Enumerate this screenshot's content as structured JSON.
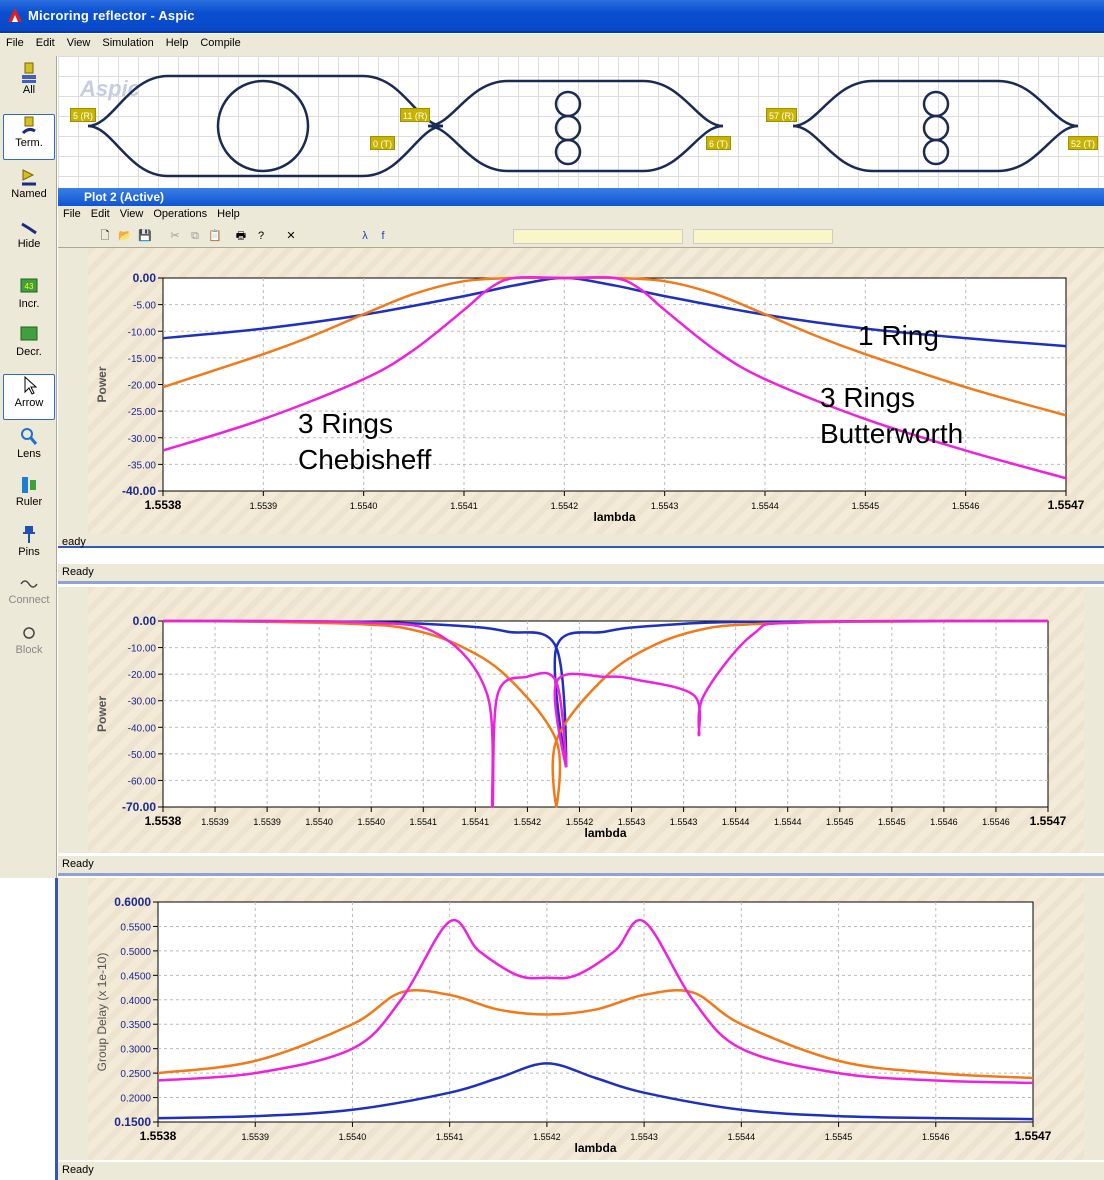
{
  "window": {
    "title": "Microring reflector - Aspic"
  },
  "menu": [
    "File",
    "Edit",
    "View",
    "Simulation",
    "Help",
    "Compile"
  ],
  "tools": [
    {
      "label": "All",
      "icon": "select-all-icon"
    },
    {
      "label": "Term.",
      "icon": "terminal-icon",
      "selected": true
    },
    {
      "label": "Named",
      "icon": "named-icon"
    },
    {
      "label": "Hide",
      "icon": "hide-icon"
    },
    {
      "label": "Incr.",
      "icon": "increment-icon",
      "badge": "43"
    },
    {
      "label": "Decr.",
      "icon": "decrement-icon"
    },
    {
      "label": "Arrow",
      "icon": "arrow-cursor-icon",
      "selected": true
    },
    {
      "label": "Lens",
      "icon": "lens-icon"
    },
    {
      "label": "Ruler",
      "icon": "ruler-icon"
    },
    {
      "label": "Pins",
      "icon": "pin-icon"
    },
    {
      "label": "Connect",
      "icon": "connect-icon",
      "disabled": true
    },
    {
      "label": "Block",
      "icon": "block-icon",
      "disabled": true
    }
  ],
  "schematic": {
    "watermark": "Aspic",
    "ports": [
      "5 (R)",
      "0 (T)",
      "11 (R)",
      "6 (T)",
      "57 (R)",
      "52 (T)"
    ]
  },
  "plot_window": {
    "title": "Plot 2 (Active)",
    "menu": [
      "File",
      "Edit",
      "View",
      "Operations",
      "Help"
    ],
    "status": "Ready",
    "status_truncated": "eady"
  },
  "status_texts": [
    "Ready",
    "Ready",
    "Ready"
  ],
  "annotations": {
    "one_ring": "1 Ring",
    "butterworth_1": "3 Rings",
    "butterworth_2": "Butterworth",
    "chebisheff_1": "3 Rings",
    "chebisheff_2": "Chebisheff"
  },
  "colors": {
    "one_ring": "#1f2fbf",
    "butterworth": "#f07a1a",
    "chebisheff": "#ee22dd",
    "title_bar": "#0a4fd0"
  },
  "chart_data": [
    {
      "type": "line",
      "xlabel": "lambda",
      "ylabel": "Power",
      "xlim": [
        1.5538,
        1.5547
      ],
      "ylim": [
        -40,
        0
      ],
      "x_ticks": [
        "1.5538",
        "1.5539",
        "1.5540",
        "1.5541",
        "1.5542",
        "1.5543",
        "1.5544",
        "1.5545",
        "1.5546",
        "1.5547"
      ],
      "y_ticks": [
        "0.00",
        "-5.00",
        "-10.00",
        "-15.00",
        "-20.00",
        "-25.00",
        "-30.00",
        "-35.00",
        "-40.00"
      ],
      "grid": true,
      "series": [
        {
          "key": "one_ring",
          "x": [
            1.5538,
            1.5539,
            1.554,
            1.5541,
            1.55415,
            1.5542,
            1.55425,
            1.5543,
            1.5544,
            1.5545,
            1.5546,
            1.5547
          ],
          "values": [
            -11.3,
            -9.5,
            -6.9,
            -3.4,
            -1.4,
            0,
            -1.4,
            -3.4,
            -6.9,
            -9.5,
            -11.3,
            -12.8
          ]
        },
        {
          "key": "butterworth",
          "x": [
            1.5538,
            1.5539,
            1.55395,
            1.554,
            1.55405,
            1.5541,
            1.55415,
            1.5542,
            1.55425,
            1.5543,
            1.55435,
            1.5544,
            1.55445,
            1.5545,
            1.5546,
            1.5547
          ],
          "values": [
            -20.5,
            -14.3,
            -10.8,
            -6.8,
            -3,
            -0.6,
            0,
            0,
            0,
            -0.6,
            -3,
            -6.8,
            -10.8,
            -14.3,
            -20.5,
            -25.8
          ]
        },
        {
          "key": "chebisheff",
          "x": [
            1.5538,
            1.5539,
            1.554,
            1.55405,
            1.5541,
            1.554125,
            1.55415,
            1.5542,
            1.55425,
            1.554275,
            1.5543,
            1.55435,
            1.5544,
            1.5545,
            1.5546,
            1.5547
          ],
          "values": [
            -32.4,
            -26.5,
            -19,
            -13.5,
            -6,
            -2,
            0,
            0,
            0,
            -2,
            -6,
            -13.5,
            -19,
            -26.5,
            -32.4,
            -37.6
          ]
        }
      ]
    },
    {
      "type": "line",
      "xlabel": "lambda",
      "ylabel": "Power",
      "xlim": [
        1.5538,
        1.5547
      ],
      "ylim": [
        -70,
        0
      ],
      "x_ticks": [
        "1.5538",
        "1.5539",
        "1.5539",
        "1.5540",
        "1.5540",
        "1.5541",
        "1.5541",
        "1.5542",
        "1.5542",
        "1.5543",
        "1.5543",
        "1.5544",
        "1.5544",
        "1.5545",
        "1.5545",
        "1.5546",
        "1.5546",
        "1.5547"
      ],
      "y_ticks": [
        "0.00",
        "-10.00",
        "-20.00",
        "-30.00",
        "-40.00",
        "-50.00",
        "-60.00",
        "-70.00"
      ],
      "grid": true,
      "series": [
        {
          "key": "one_ring",
          "x": [
            1.5538,
            1.554,
            1.5541,
            1.55415,
            1.5542,
            1.55421,
            1.5542,
            1.55425,
            1.5543,
            1.5544,
            1.5547
          ],
          "values": [
            0,
            -0.3,
            -1.8,
            -4,
            -10,
            -55,
            -10,
            -4,
            -1.8,
            -0.3,
            0
          ]
        },
        {
          "key": "butterworth",
          "x": [
            1.5538,
            1.5539,
            1.554,
            1.55405,
            1.5541,
            1.55415,
            1.5542,
            1.5542,
            1.5542,
            1.55425,
            1.5543,
            1.55435,
            1.5544,
            1.5545,
            1.5547
          ],
          "values": [
            0,
            -0.3,
            -1.2,
            -3,
            -9,
            -21,
            -45,
            -70,
            -45,
            -21,
            -9,
            -3,
            -1.2,
            -0.3,
            0
          ]
        },
        {
          "key": "chebisheff",
          "x": [
            1.5538,
            1.554,
            1.55408,
            1.55413,
            1.554135,
            1.55414,
            1.55417,
            1.5542,
            1.55421,
            1.5542,
            1.55425,
            1.55428,
            1.55434,
            1.554345,
            1.55435,
            1.5544,
            1.55445,
            1.5547
          ],
          "values": [
            0,
            -0.5,
            -5,
            -28,
            -70,
            -28,
            -21,
            -23,
            -55,
            -23,
            -21,
            -22,
            -28,
            -43,
            -28,
            -5,
            -0.5,
            0
          ]
        }
      ]
    },
    {
      "type": "line",
      "xlabel": "lambda",
      "ylabel": "Group Delay (x 1e-10)",
      "xlim": [
        1.5538,
        1.5547
      ],
      "ylim": [
        0.15,
        0.6
      ],
      "x_ticks": [
        "1.5538",
        "1.5539",
        "1.5540",
        "1.5541",
        "1.5542",
        "1.5543",
        "1.5544",
        "1.5545",
        "1.5546",
        "1.5547"
      ],
      "y_ticks": [
        "0.6000",
        "0.5500",
        "0.5000",
        "0.4500",
        "0.4000",
        "0.3500",
        "0.3000",
        "0.2500",
        "0.2000",
        "0.1500"
      ],
      "grid": true,
      "series": [
        {
          "key": "one_ring",
          "x": [
            1.5538,
            1.5539,
            1.554,
            1.5541,
            1.55415,
            1.5542,
            1.55425,
            1.5543,
            1.5544,
            1.5545,
            1.5546,
            1.5547
          ],
          "values": [
            0.158,
            0.162,
            0.175,
            0.21,
            0.24,
            0.27,
            0.24,
            0.21,
            0.175,
            0.162,
            0.158,
            0.156
          ]
        },
        {
          "key": "butterworth",
          "x": [
            1.5538,
            1.5539,
            1.554,
            1.55405,
            1.5541,
            1.55415,
            1.5542,
            1.55425,
            1.5543,
            1.55435,
            1.5544,
            1.5545,
            1.5546,
            1.5547
          ],
          "values": [
            0.25,
            0.275,
            0.35,
            0.415,
            0.41,
            0.38,
            0.37,
            0.38,
            0.41,
            0.415,
            0.35,
            0.275,
            0.25,
            0.24
          ]
        },
        {
          "key": "chebisheff",
          "x": [
            1.5538,
            1.5539,
            1.554,
            1.55405,
            1.5541,
            1.55413,
            1.55417,
            1.5542,
            1.55423,
            1.55427,
            1.5543,
            1.55435,
            1.5544,
            1.5545,
            1.5546,
            1.5547
          ],
          "values": [
            0.235,
            0.25,
            0.3,
            0.4,
            0.56,
            0.5,
            0.45,
            0.445,
            0.45,
            0.5,
            0.56,
            0.4,
            0.3,
            0.25,
            0.235,
            0.23
          ]
        }
      ]
    }
  ]
}
